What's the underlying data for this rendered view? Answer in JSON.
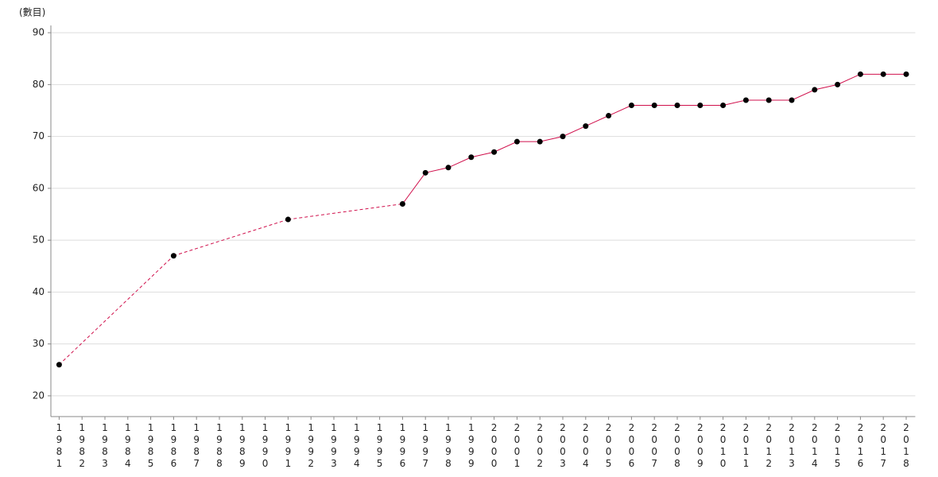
{
  "chart_data": {
    "type": "line",
    "y_label": "(數目)",
    "categories": [
      "1981",
      "1982",
      "1983",
      "1984",
      "1985",
      "1986",
      "1987",
      "1988",
      "1989",
      "1990",
      "1991",
      "1992",
      "1993",
      "1994",
      "1995",
      "1996",
      "1997",
      "1998",
      "1999",
      "2000",
      "2001",
      "2002",
      "2003",
      "2004",
      "2005",
      "2006",
      "2007",
      "2008",
      "2009",
      "2010",
      "2011",
      "2012",
      "2013",
      "2014",
      "2015",
      "2016",
      "2017",
      "2018"
    ],
    "series": [
      {
        "color": "#d0104c",
        "values": [
          26,
          null,
          null,
          null,
          null,
          47,
          null,
          null,
          null,
          null,
          54,
          null,
          null,
          null,
          null,
          57,
          63,
          64,
          66,
          67,
          69,
          69,
          70,
          72,
          74,
          76,
          76,
          76,
          76,
          76,
          77,
          77,
          77,
          79,
          80,
          82,
          82,
          82
        ]
      }
    ],
    "ylim": [
      16,
      91.4
    ],
    "yticks": [
      20,
      30,
      40,
      50,
      60,
      70,
      80,
      90
    ],
    "grid": true
  }
}
